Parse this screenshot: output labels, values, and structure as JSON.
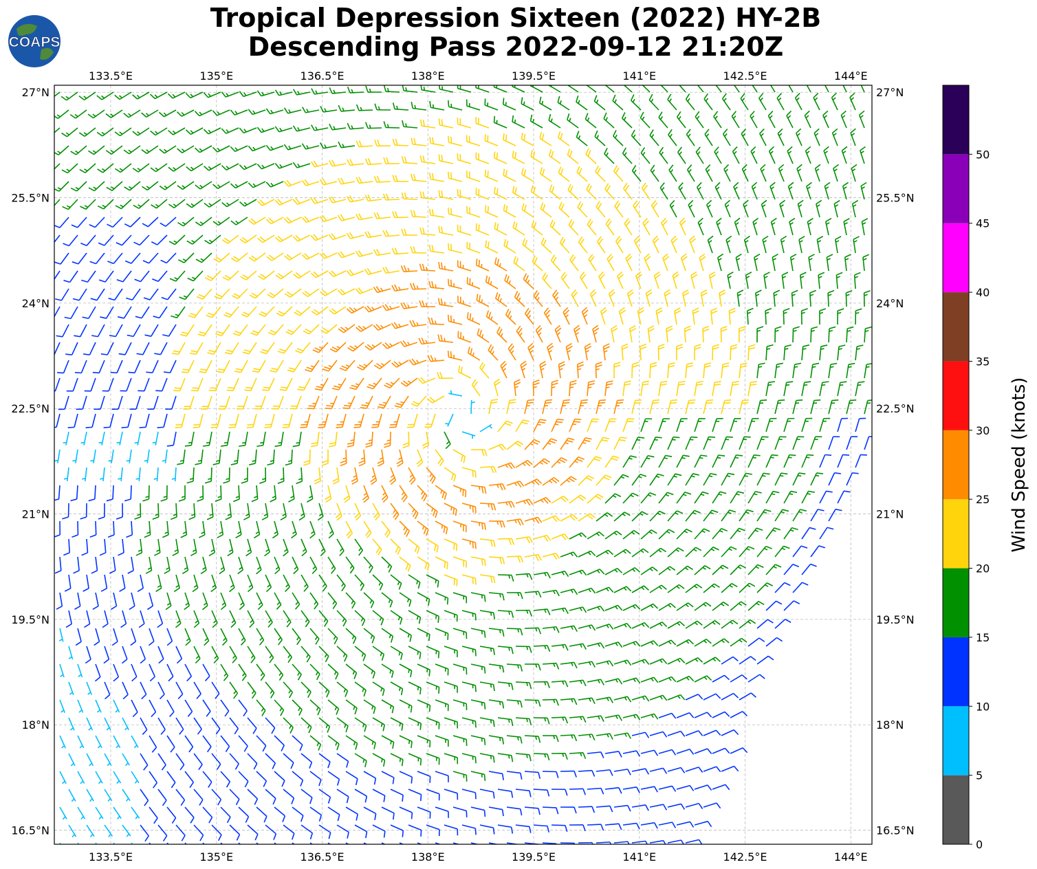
{
  "title": {
    "line1": "Tropical Depression Sixteen (2022) HY-2B",
    "line2": "Descending Pass 2022-09-12 21:20Z"
  },
  "logo": {
    "text": "COAPS",
    "icon": "globe-logo"
  },
  "map": {
    "lon_ticks": [
      "133.5°E",
      "135°E",
      "136.5°E",
      "138°E",
      "139.5°E",
      "141°E",
      "142.5°E",
      "144°E"
    ],
    "lat_ticks": [
      "27°N",
      "25.5°N",
      "24°N",
      "22.5°N",
      "21°N",
      "19.5°N",
      "18°N",
      "16.5°N"
    ],
    "lon_values": [
      133.5,
      135,
      136.5,
      138,
      139.5,
      141,
      142.5,
      144
    ],
    "lat_values": [
      27,
      25.5,
      24,
      22.5,
      21,
      19.5,
      18,
      16.5
    ],
    "lon_range": [
      132.7,
      144.3
    ],
    "lat_range": [
      16.3,
      27.1
    ],
    "storm_center": {
      "lon": 138.5,
      "lat": 22.4
    },
    "gridlines": true
  },
  "colorbar": {
    "label": "Wind Speed (knots)",
    "ticks": [
      "0",
      "5",
      "10",
      "15",
      "20",
      "25",
      "30",
      "35",
      "40",
      "45",
      "50"
    ],
    "bins": [
      {
        "min": 0,
        "max": 5,
        "color": "#595959"
      },
      {
        "min": 5,
        "max": 10,
        "color": "#00bfff"
      },
      {
        "min": 10,
        "max": 15,
        "color": "#0033ff"
      },
      {
        "min": 15,
        "max": 20,
        "color": "#009000"
      },
      {
        "min": 20,
        "max": 25,
        "color": "#ffd40d"
      },
      {
        "min": 25,
        "max": 30,
        "color": "#ff8c00"
      },
      {
        "min": 30,
        "max": 35,
        "color": "#ff1010"
      },
      {
        "min": 35,
        "max": 40,
        "color": "#7f3f25"
      },
      {
        "min": 40,
        "max": 45,
        "color": "#ff00ff"
      },
      {
        "min": 45,
        "max": 50,
        "color": "#8a00b8"
      },
      {
        "min": 50,
        "max": 55,
        "color": "#2a0058"
      }
    ]
  }
}
